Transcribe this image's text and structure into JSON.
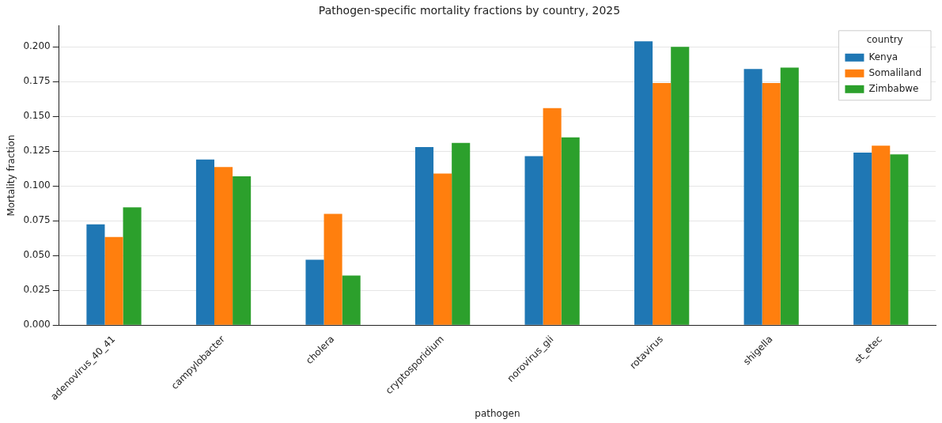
{
  "chart_data": {
    "type": "bar",
    "title": "Pathogen-specific mortality fractions by country, 2025",
    "xlabel": "pathogen",
    "ylabel": "Mortality fraction",
    "legend_title": "country",
    "categories": [
      "adenovirus_40_41",
      "campylobacter",
      "cholera",
      "cryptosporidium",
      "norovirus_gii",
      "rotavirus",
      "shigella",
      "st_etec"
    ],
    "series": [
      {
        "name": "Kenya",
        "color": "#1f77b4",
        "values": [
          0.0725,
          0.119,
          0.047,
          0.128,
          0.1215,
          0.204,
          0.184,
          0.124
        ]
      },
      {
        "name": "Somaliland",
        "color": "#ff7f0e",
        "values": [
          0.0634,
          0.1136,
          0.08,
          0.109,
          0.156,
          0.174,
          0.174,
          0.129
        ]
      },
      {
        "name": "Zimbabwe",
        "color": "#2ca02c",
        "values": [
          0.0846,
          0.107,
          0.0356,
          0.131,
          0.135,
          0.2,
          0.185,
          0.1227
        ]
      }
    ],
    "ylim": [
      0,
      0.215
    ],
    "yticks": [
      {
        "value": 0,
        "label": "0.000"
      },
      {
        "value": 0.025,
        "label": "0.025"
      },
      {
        "value": 0.05,
        "label": "0.050"
      },
      {
        "value": 0.075,
        "label": "0.075"
      },
      {
        "value": 0.1,
        "label": "0.100"
      },
      {
        "value": 0.125,
        "label": "0.125"
      },
      {
        "value": 0.15,
        "label": "0.150"
      },
      {
        "value": 0.175,
        "label": "0.175"
      },
      {
        "value": 0.2,
        "label": "0.200"
      }
    ],
    "grid": "y",
    "legend": "top right"
  }
}
